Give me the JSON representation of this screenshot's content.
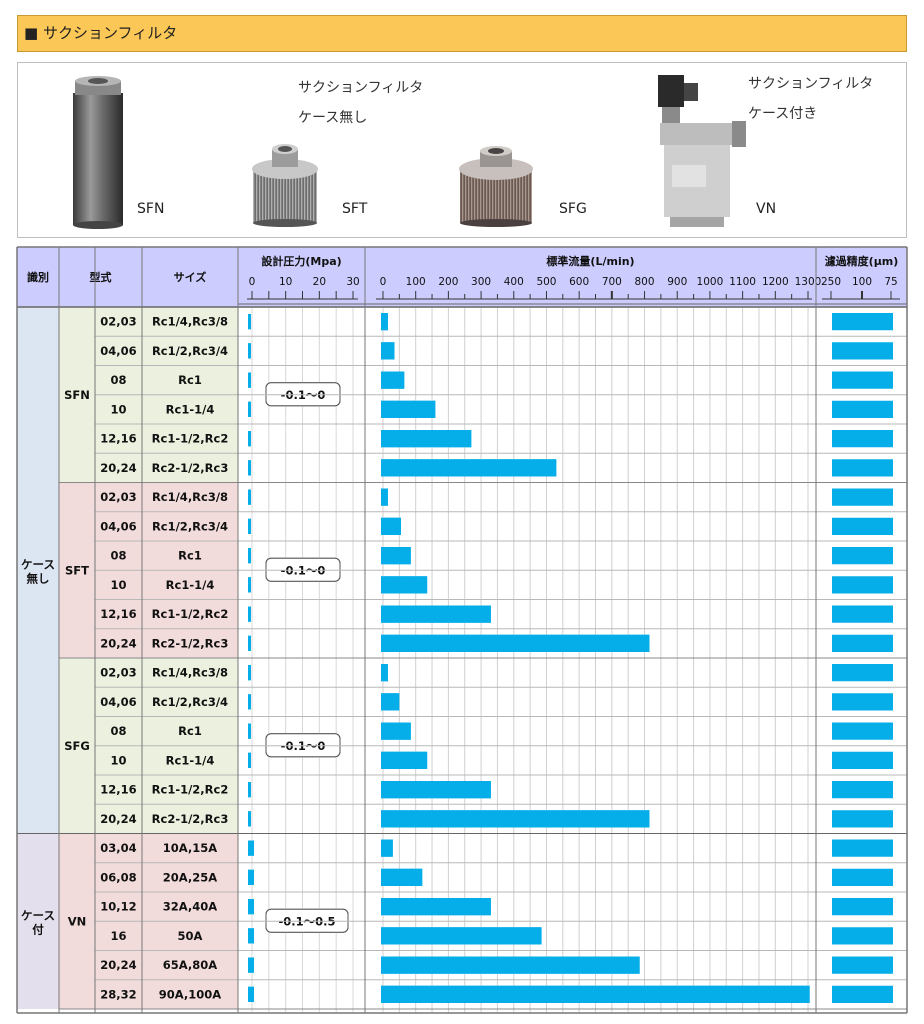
{
  "header": {
    "title": "■ サクションフィルタ"
  },
  "products": {
    "caption_no_case_1": "サクションフィルタ",
    "caption_no_case_2": "ケース無し",
    "caption_case_1": "サクションフィルタ",
    "caption_case_2": "ケース付き",
    "labels": [
      "SFN",
      "SFT",
      "SFG",
      "VN"
    ]
  },
  "chart_data": {
    "type": "table",
    "columns": {
      "category": "識別",
      "model": "型式",
      "size": "サイズ",
      "pressure": "設計圧力(Mpa)",
      "flow": "標準流量(L/min)",
      "precision": "濾過精度(μm)"
    },
    "pressure_ticks": [
      "0",
      "10",
      "20",
      "30"
    ],
    "pressure_range": [
      0,
      35
    ],
    "flow_ticks": [
      "0",
      "100",
      "200",
      "300",
      "400",
      "500",
      "600",
      "700",
      "800",
      "900",
      "1000",
      "1100",
      "1200",
      "1300"
    ],
    "flow_range": [
      0,
      1350
    ],
    "precision_ticks": [
      "250",
      "100",
      "75"
    ],
    "colors": {
      "bar": "#05aee9",
      "header_bg": "#ccccff",
      "cat_no_case": "#dce6f2",
      "cat_case": "#e4dfec",
      "sfn": "#ebf1de",
      "sft": "#f2dcdb",
      "sfg": "#ebf1de",
      "vn": "#f2dcdb"
    },
    "categories": [
      {
        "label": "ケース無し",
        "rows": 18
      },
      {
        "label": "ケース付",
        "rows": 6
      }
    ],
    "groups": [
      {
        "model": "SFN",
        "pressure_label": "-0.1～0",
        "pressure_max": 1,
        "rows": [
          {
            "code": "02,03",
            "size": "Rc1/4,Rc3/8",
            "flow": 15,
            "precision_max": 75
          },
          {
            "code": "04,06",
            "size": "Rc1/2,Rc3/4",
            "flow": 35,
            "precision_max": 75
          },
          {
            "code": "08",
            "size": "Rc1",
            "flow": 65,
            "precision_max": 75
          },
          {
            "code": "10",
            "size": "Rc1-1/4",
            "flow": 160,
            "precision_max": 75
          },
          {
            "code": "12,16",
            "size": "Rc1-1/2,Rc2",
            "flow": 270,
            "precision_max": 75
          },
          {
            "code": "20,24",
            "size": "Rc2-1/2,Rc3",
            "flow": 530,
            "precision_max": 75
          }
        ]
      },
      {
        "model": "SFT",
        "pressure_label": "-0.1～0",
        "pressure_max": 1,
        "rows": [
          {
            "code": "02,03",
            "size": "Rc1/4,Rc3/8",
            "flow": 15,
            "precision_max": 75
          },
          {
            "code": "04,06",
            "size": "Rc1/2,Rc3/4",
            "flow": 55,
            "precision_max": 75
          },
          {
            "code": "08",
            "size": "Rc1",
            "flow": 85,
            "precision_max": 75
          },
          {
            "code": "10",
            "size": "Rc1-1/4",
            "flow": 135,
            "precision_max": 75
          },
          {
            "code": "12,16",
            "size": "Rc1-1/2,Rc2",
            "flow": 330,
            "precision_max": 75
          },
          {
            "code": "20,24",
            "size": "Rc2-1/2,Rc3",
            "flow": 815,
            "precision_max": 75
          }
        ]
      },
      {
        "model": "SFG",
        "pressure_label": "-0.1～0",
        "pressure_max": 1,
        "rows": [
          {
            "code": "02,03",
            "size": "Rc1/4,Rc3/8",
            "flow": 15,
            "precision_max": 75
          },
          {
            "code": "04,06",
            "size": "Rc1/2,Rc3/4",
            "flow": 50,
            "precision_max": 75
          },
          {
            "code": "08",
            "size": "Rc1",
            "flow": 85,
            "precision_max": 75
          },
          {
            "code": "10",
            "size": "Rc1-1/4",
            "flow": 135,
            "precision_max": 75
          },
          {
            "code": "12,16",
            "size": "Rc1-1/2,Rc2",
            "flow": 330,
            "precision_max": 75
          },
          {
            "code": "20,24",
            "size": "Rc2-1/2,Rc3",
            "flow": 815,
            "precision_max": 75
          }
        ]
      },
      {
        "model": "VN",
        "pressure_label": "-0.1～0.5",
        "pressure_max": 2,
        "rows": [
          {
            "code": "03,04",
            "size": "10A,15A",
            "flow": 30,
            "precision_max": 75
          },
          {
            "code": "06,08",
            "size": "20A,25A",
            "flow": 120,
            "precision_max": 75
          },
          {
            "code": "10,12",
            "size": "32A,40A",
            "flow": 330,
            "precision_max": 75
          },
          {
            "code": "16",
            "size": "50A",
            "flow": 485,
            "precision_max": 75
          },
          {
            "code": "20,24",
            "size": "65A,80A",
            "flow": 785,
            "precision_max": 75
          },
          {
            "code": "28,32",
            "size": "90A,100A",
            "flow": 1305,
            "precision_max": 75
          }
        ]
      }
    ]
  }
}
